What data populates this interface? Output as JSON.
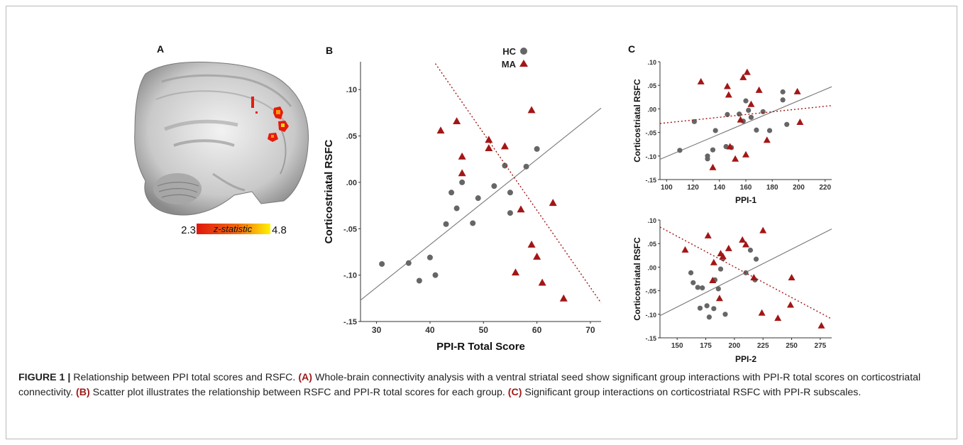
{
  "figure": {
    "panel_letters": [
      "A",
      "B",
      "C"
    ],
    "brain_colorbar": {
      "min_label": "2.3",
      "max_label": "4.8",
      "label": "z-statistic",
      "color_low": "#e0180e",
      "color_high": "#fff200"
    }
  },
  "legend": {
    "hc_label": "HC",
    "ma_label": "MA",
    "hc_color": "#666666",
    "ma_color": "#a31616"
  },
  "chart_data": [
    {
      "type": "scatter",
      "panel": "B",
      "xlabel": "PPI-R Total Score",
      "ylabel": "Corticostriatal RSFC",
      "xlim": [
        27,
        72
      ],
      "ylim": [
        -0.15,
        0.13
      ],
      "xticks": [
        30,
        40,
        50,
        60,
        70
      ],
      "xtick_labels": [
        "30",
        "40",
        "50",
        "60",
        "70"
      ],
      "yticks": [
        0.1,
        0.05,
        0.0,
        -0.05,
        -0.1,
        -0.15
      ],
      "ytick_labels": [
        ".10",
        ".05",
        ".00",
        "-.05",
        "-.10",
        "-.15"
      ],
      "legend_position": "top-right",
      "grid": false,
      "series": [
        {
          "name": "HC",
          "marker": "circle",
          "fit": "solid",
          "points": [
            [
              31,
              -0.088
            ],
            [
              36,
              -0.087
            ],
            [
              38,
              -0.106
            ],
            [
              40,
              -0.081
            ],
            [
              41,
              -0.1
            ],
            [
              43,
              -0.045
            ],
            [
              44,
              -0.011
            ],
            [
              45,
              -0.028
            ],
            [
              46,
              0.0
            ],
            [
              48,
              -0.044
            ],
            [
              49,
              -0.017
            ],
            [
              52,
              -0.004
            ],
            [
              54,
              0.018
            ],
            [
              55,
              -0.011
            ],
            [
              55,
              -0.033
            ],
            [
              58,
              0.017
            ],
            [
              60,
              0.036
            ]
          ],
          "fit_line": [
            [
              27,
              -0.127
            ],
            [
              72,
              0.08
            ]
          ]
        },
        {
          "name": "MA",
          "marker": "triangle",
          "fit": "dotted",
          "points": [
            [
              42,
              0.056
            ],
            [
              45,
              0.066
            ],
            [
              46,
              0.028
            ],
            [
              46,
              0.01
            ],
            [
              51,
              0.046
            ],
            [
              51,
              0.037
            ],
            [
              54,
              0.039
            ],
            [
              56,
              -0.097
            ],
            [
              57,
              -0.029
            ],
            [
              59,
              0.078
            ],
            [
              59,
              -0.067
            ],
            [
              60,
              -0.08
            ],
            [
              61,
              -0.108
            ],
            [
              63,
              -0.022
            ],
            [
              65,
              -0.125
            ]
          ],
          "fit_line": [
            [
              41,
              0.128
            ],
            [
              72,
              -0.13
            ]
          ]
        }
      ]
    },
    {
      "type": "scatter",
      "panel": "C-top",
      "xlabel": "PPI-1",
      "ylabel": "Corticostriatal RSFC",
      "xlim": [
        95,
        225
      ],
      "ylim": [
        -0.15,
        0.1
      ],
      "xticks": [
        100,
        120,
        140,
        160,
        180,
        200,
        220
      ],
      "xtick_labels": [
        "100",
        "120",
        "140",
        "160",
        "180",
        "200",
        "220"
      ],
      "yticks": [
        0.1,
        0.05,
        0.0,
        -0.05,
        -0.1,
        -0.15
      ],
      "ytick_labels": [
        ".10",
        ".05",
        ".00",
        "-.05",
        "-.10",
        "-.15"
      ],
      "grid": false,
      "series": [
        {
          "name": "HC",
          "marker": "circle",
          "fit": "solid",
          "points": [
            [
              110,
              -0.088
            ],
            [
              121,
              -0.027
            ],
            [
              131,
              -0.1
            ],
            [
              131,
              -0.106
            ],
            [
              135,
              -0.087
            ],
            [
              137,
              -0.046
            ],
            [
              145,
              -0.08
            ],
            [
              146,
              -0.012
            ],
            [
              149,
              -0.082
            ],
            [
              155,
              -0.011
            ],
            [
              158,
              -0.026
            ],
            [
              160,
              0.017
            ],
            [
              162,
              -0.003
            ],
            [
              164,
              -0.018
            ],
            [
              168,
              -0.045
            ],
            [
              173,
              -0.006
            ],
            [
              178,
              -0.046
            ],
            [
              188,
              0.036
            ],
            [
              188,
              0.019
            ],
            [
              191,
              -0.033
            ]
          ],
          "fit_line": [
            [
              95,
              -0.107
            ],
            [
              225,
              0.047
            ]
          ]
        },
        {
          "name": "MA",
          "marker": "triangle",
          "fit": "dotted",
          "points": [
            [
              126,
              0.058
            ],
            [
              135,
              -0.124
            ],
            [
              146,
              0.048
            ],
            [
              147,
              0.03
            ],
            [
              148,
              -0.08
            ],
            [
              152,
              -0.106
            ],
            [
              156,
              -0.023
            ],
            [
              158,
              0.067
            ],
            [
              161,
              0.078
            ],
            [
              160,
              -0.097
            ],
            [
              164,
              0.01
            ],
            [
              170,
              0.04
            ],
            [
              176,
              -0.066
            ],
            [
              199,
              0.037
            ],
            [
              201,
              -0.028
            ]
          ],
          "fit_line": [
            [
              95,
              -0.031
            ],
            [
              225,
              0.007
            ]
          ]
        }
      ]
    },
    {
      "type": "scatter",
      "panel": "C-bottom",
      "xlabel": "PPI-2",
      "ylabel": "Corticostriatal RSFC",
      "xlim": [
        135,
        285
      ],
      "ylim": [
        -0.15,
        0.1
      ],
      "xticks": [
        150,
        175,
        200,
        225,
        250,
        275
      ],
      "xtick_labels": [
        "150",
        "175",
        "200",
        "225",
        "250",
        "275"
      ],
      "yticks": [
        0.1,
        0.05,
        0.0,
        -0.05,
        -0.1,
        -0.15
      ],
      "ytick_labels": [
        ".10",
        ".05",
        ".00",
        "-.05",
        "-.10",
        "-.15"
      ],
      "grid": false,
      "series": [
        {
          "name": "HC",
          "marker": "circle",
          "fit": "solid",
          "points": [
            [
              162,
              -0.012
            ],
            [
              164,
              -0.033
            ],
            [
              168,
              -0.043
            ],
            [
              170,
              -0.087
            ],
            [
              172,
              -0.044
            ],
            [
              176,
              -0.082
            ],
            [
              178,
              -0.106
            ],
            [
              182,
              -0.088
            ],
            [
              183,
              -0.027
            ],
            [
              186,
              -0.046
            ],
            [
              188,
              -0.004
            ],
            [
              190,
              0.018
            ],
            [
              192,
              -0.1
            ],
            [
              210,
              -0.012
            ],
            [
              214,
              0.036
            ],
            [
              218,
              -0.027
            ],
            [
              219,
              0.017
            ]
          ],
          "fit_line": [
            [
              135,
              -0.103
            ],
            [
              285,
              0.081
            ]
          ]
        },
        {
          "name": "MA",
          "marker": "triangle",
          "fit": "dotted",
          "points": [
            [
              157,
              0.037
            ],
            [
              177,
              0.067
            ],
            [
              181,
              -0.028
            ],
            [
              182,
              0.01
            ],
            [
              187,
              -0.066
            ],
            [
              188,
              0.029
            ],
            [
              190,
              0.023
            ],
            [
              195,
              0.04
            ],
            [
              207,
              0.058
            ],
            [
              210,
              0.048
            ],
            [
              217,
              -0.022
            ],
            [
              224,
              -0.097
            ],
            [
              225,
              0.078
            ],
            [
              238,
              -0.108
            ],
            [
              249,
              -0.08
            ],
            [
              250,
              -0.022
            ],
            [
              276,
              -0.124
            ]
          ],
          "fit_line": [
            [
              135,
              0.085
            ],
            [
              285,
              -0.11
            ]
          ]
        }
      ]
    }
  ],
  "caption": {
    "lead": "FIGURE 1",
    "separator": " | ",
    "title": "Relationship between PPI total scores and RSFC. ",
    "a_tag": "(A)",
    "a_text": " Whole-brain connectivity analysis with a ventral striatal seed show significant group interactions with PPI-R total scores on corticostriatal connectivity. ",
    "b_tag": "(B)",
    "b_text": " Scatter plot illustrates the relationship between RSFC and PPI-R total scores for each group. ",
    "c_tag": "(C)",
    "c_text": " Significant group interactions on corticostriatal RSFC with PPI-R subscales."
  }
}
